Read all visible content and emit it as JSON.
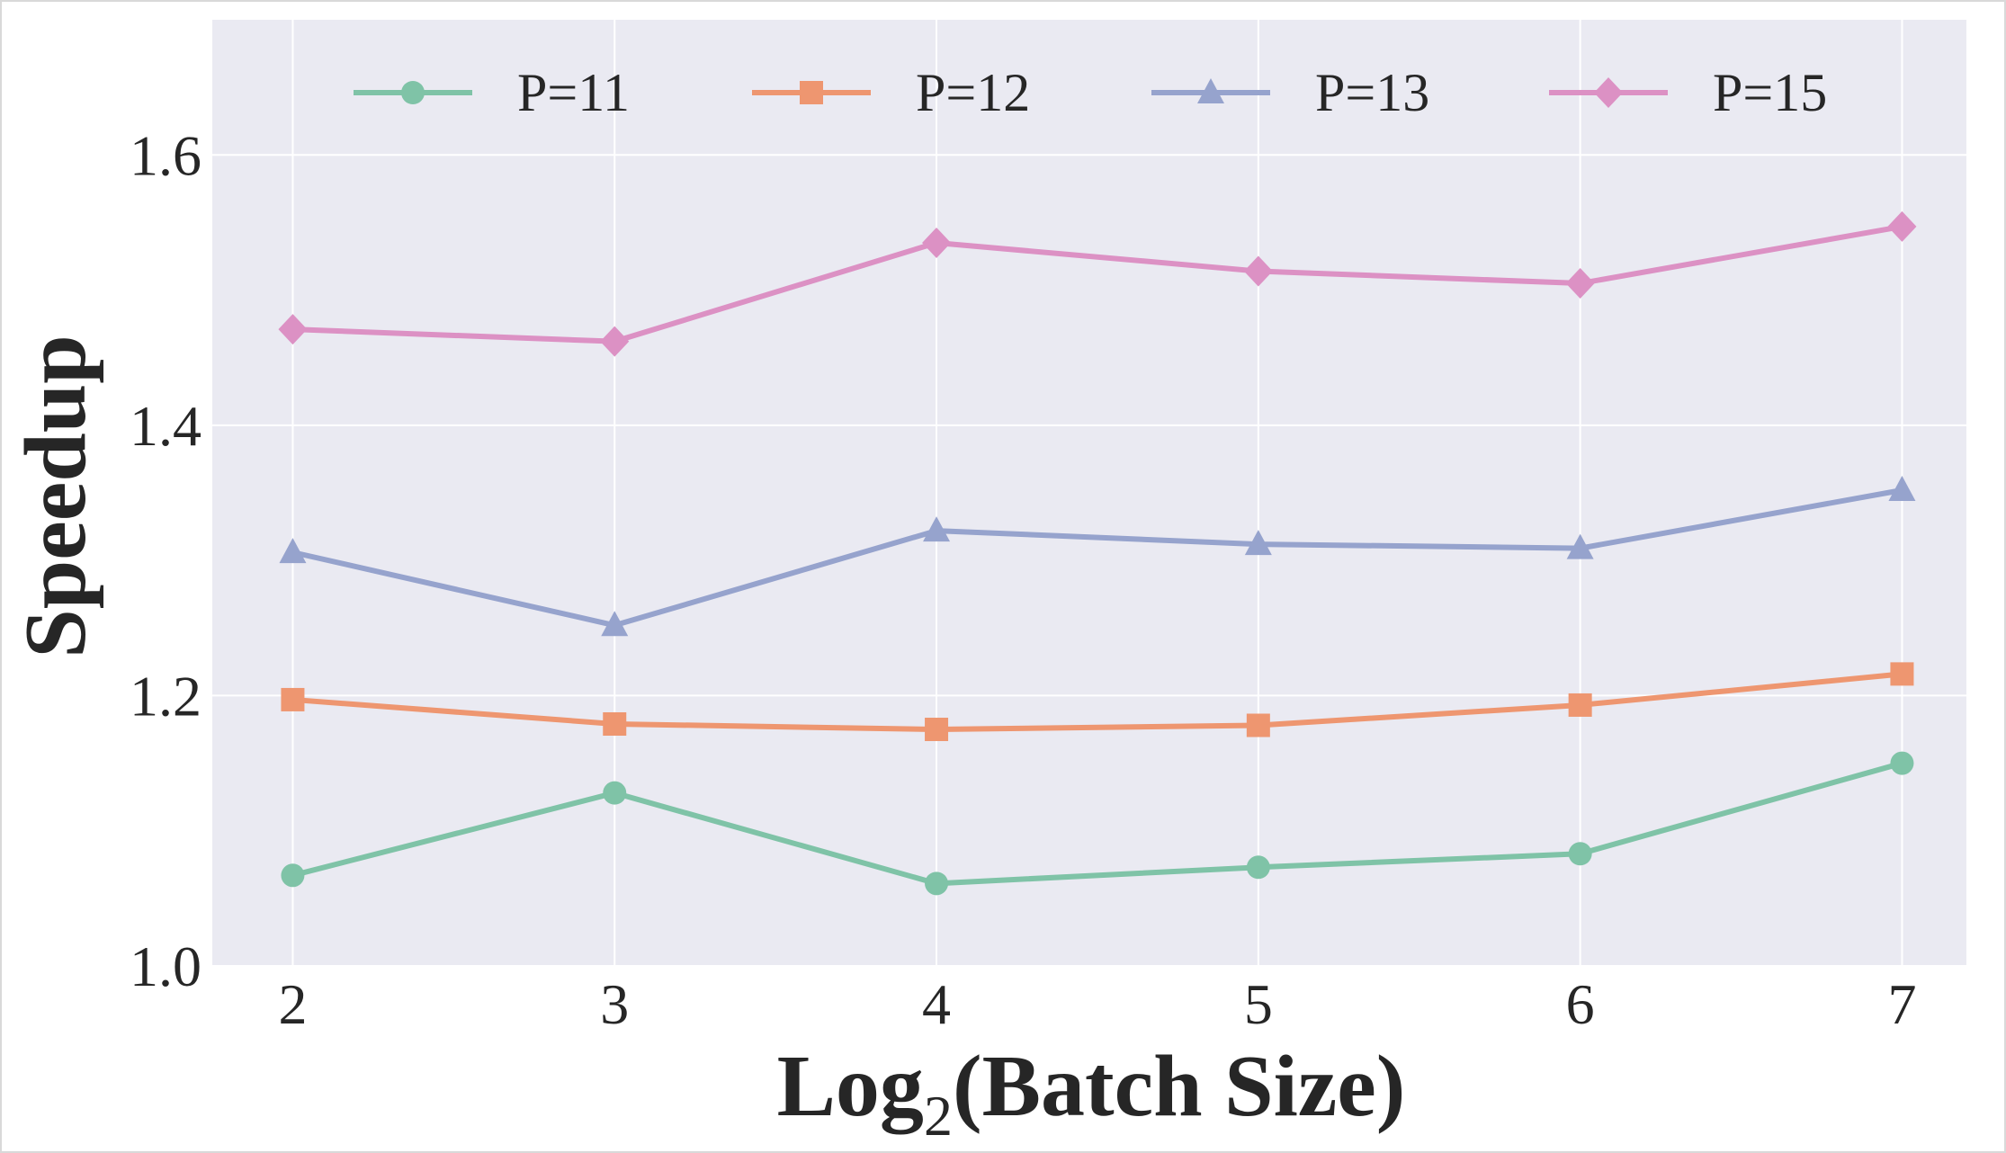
{
  "chart_data": {
    "type": "line",
    "x": [
      2,
      3,
      4,
      5,
      6,
      7
    ],
    "xticks": [
      "2",
      "3",
      "4",
      "5",
      "6",
      "7"
    ],
    "yticks": [
      "1.0",
      "1.2",
      "1.4",
      "1.6"
    ],
    "xlim": [
      1.75,
      7.2
    ],
    "ylim": [
      1.0,
      1.7
    ],
    "xlabel": "Log2(Batch Size)",
    "xlabel_main": "Log",
    "xlabel_sub": "2",
    "xlabel_rest": "(Batch Size)",
    "ylabel": "Speedup",
    "grid": true,
    "legend_position": "top",
    "series": [
      {
        "name": "P=11",
        "marker": "circle",
        "color": "#7fc3a7",
        "values": [
          1.067,
          1.128,
          1.061,
          1.073,
          1.083,
          1.15
        ]
      },
      {
        "name": "P=12",
        "marker": "square",
        "color": "#ee9670",
        "values": [
          1.197,
          1.179,
          1.175,
          1.178,
          1.193,
          1.216
        ]
      },
      {
        "name": "P=13",
        "marker": "triangle",
        "color": "#96a3cd",
        "values": [
          1.306,
          1.252,
          1.322,
          1.312,
          1.309,
          1.352
        ]
      },
      {
        "name": "P=15",
        "marker": "diamond",
        "color": "#dc91c4",
        "values": [
          1.471,
          1.462,
          1.535,
          1.514,
          1.505,
          1.547
        ]
      }
    ],
    "background_color": "#eaeaf2",
    "grid_color": "#ffffff"
  }
}
